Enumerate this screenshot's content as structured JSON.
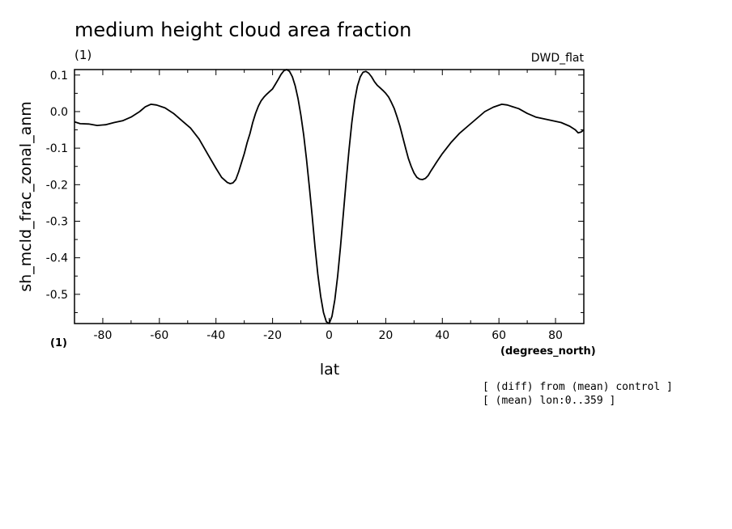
{
  "chart_data": {
    "type": "line",
    "title": "medium height cloud area fraction",
    "subtitle": "(1)",
    "dataset_label": "DWD_flat",
    "xlabel": "lat",
    "xunits": "(degrees_north)",
    "ylabel": "sh_mcld_frac_zonal_anm",
    "y_units_marker": "(1)",
    "xlim": [
      -90,
      90
    ],
    "ylim": [
      -0.58,
      0.115
    ],
    "xticks": [
      -80,
      -60,
      -40,
      -20,
      0,
      20,
      40,
      60,
      80
    ],
    "xtick_labels": [
      "-80",
      "-60",
      "-40",
      "-20",
      "0",
      "20",
      "40",
      "60",
      "80"
    ],
    "yticks": [
      0.1,
      0.0,
      -0.1,
      -0.2,
      -0.3,
      -0.4,
      -0.5
    ],
    "ytick_labels": [
      "0.1",
      "0.0",
      "-0.1",
      "-0.2",
      "-0.3",
      "-0.4",
      "-0.5"
    ],
    "grid": false,
    "notes": [
      "[ (diff) from (mean) control ]",
      "[ (mean) lon:0..359 ]"
    ],
    "series": [
      {
        "color": "#000000",
        "x": [
          -90,
          -88,
          -85,
          -82,
          -79,
          -76,
          -73,
          -70,
          -67,
          -65,
          -63,
          -61,
          -58,
          -55,
          -52,
          -49,
          -46,
          -43,
          -40,
          -38,
          -36,
          -35,
          -34,
          -33,
          -32,
          -31,
          -30,
          -29,
          -28,
          -27,
          -26,
          -25,
          -24,
          -23,
          -22,
          -21,
          -20,
          -19,
          -18,
          -17,
          -16,
          -15,
          -14,
          -13,
          -12,
          -11,
          -10,
          -9,
          -8,
          -7,
          -6,
          -5,
          -4,
          -3,
          -2,
          -1,
          0,
          1,
          2,
          3,
          4,
          5,
          6,
          7,
          8,
          9,
          10,
          11,
          12,
          13,
          14,
          15,
          16,
          17,
          18,
          19,
          20,
          21,
          22,
          23,
          24,
          25,
          26,
          27,
          28,
          29,
          30,
          31,
          32,
          33,
          34,
          35,
          36,
          37,
          38,
          40,
          43,
          46,
          49,
          52,
          55,
          58,
          61,
          63,
          65,
          67,
          70,
          73,
          76,
          79,
          82,
          85,
          87,
          88,
          89,
          90
        ],
        "y": [
          -0.028,
          -0.033,
          -0.034,
          -0.038,
          -0.036,
          -0.03,
          -0.025,
          -0.015,
          0.0,
          0.013,
          0.02,
          0.018,
          0.01,
          -0.005,
          -0.025,
          -0.045,
          -0.075,
          -0.115,
          -0.155,
          -0.18,
          -0.194,
          -0.197,
          -0.195,
          -0.186,
          -0.165,
          -0.14,
          -0.115,
          -0.085,
          -0.06,
          -0.03,
          -0.005,
          0.015,
          0.03,
          0.04,
          0.048,
          0.055,
          0.062,
          0.075,
          0.088,
          0.102,
          0.112,
          0.115,
          0.11,
          0.095,
          0.07,
          0.035,
          -0.01,
          -0.065,
          -0.13,
          -0.205,
          -0.285,
          -0.37,
          -0.445,
          -0.505,
          -0.55,
          -0.575,
          -0.58,
          -0.56,
          -0.515,
          -0.45,
          -0.37,
          -0.28,
          -0.19,
          -0.105,
          -0.03,
          0.03,
          0.07,
          0.095,
          0.108,
          0.11,
          0.105,
          0.095,
          0.082,
          0.072,
          0.065,
          0.058,
          0.05,
          0.04,
          0.025,
          0.008,
          -0.015,
          -0.04,
          -0.07,
          -0.1,
          -0.128,
          -0.15,
          -0.168,
          -0.18,
          -0.185,
          -0.186,
          -0.183,
          -0.175,
          -0.162,
          -0.15,
          -0.138,
          -0.115,
          -0.085,
          -0.06,
          -0.04,
          -0.02,
          0.0,
          0.012,
          0.02,
          0.018,
          0.013,
          0.008,
          -0.005,
          -0.015,
          -0.02,
          -0.025,
          -0.03,
          -0.04,
          -0.05,
          -0.058,
          -0.056,
          -0.05
        ]
      }
    ]
  }
}
